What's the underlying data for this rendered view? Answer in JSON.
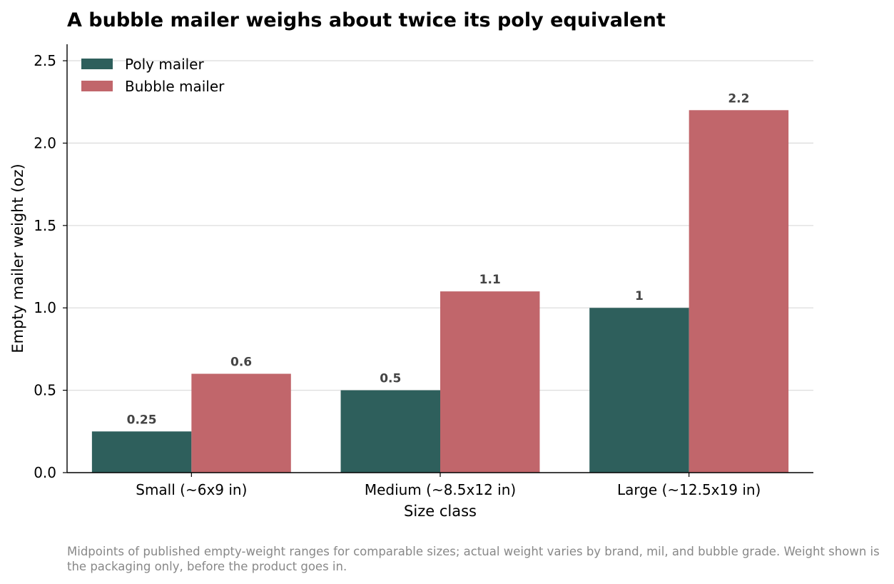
{
  "chart_data": {
    "type": "bar",
    "title": "A bubble mailer weighs about twice its poly equivalent",
    "xlabel": "Size class",
    "ylabel": "Empty mailer weight (oz)",
    "categories": [
      "Small (~6x9 in)",
      "Medium (~8.5x12 in)",
      "Large (~12.5x19 in)"
    ],
    "series": [
      {
        "name": "Poly mailer",
        "color": "#2e5f5c",
        "values": [
          0.25,
          0.5,
          1
        ],
        "labels": [
          "0.25",
          "0.5",
          "1"
        ]
      },
      {
        "name": "Bubble mailer",
        "color": "#c1666b",
        "values": [
          0.6,
          1.1,
          2.2
        ],
        "labels": [
          "0.6",
          "1.1",
          "2.2"
        ]
      }
    ],
    "ylim": [
      0,
      2.6
    ],
    "yticks": [
      0.0,
      0.5,
      1.0,
      1.5,
      2.0,
      2.5
    ],
    "ytick_labels": [
      "0.0",
      "0.5",
      "1.0",
      "1.5",
      "2.0",
      "2.5"
    ],
    "grid": "horizontal",
    "legend_position": "top-left"
  },
  "footnote": "Midpoints of published empty-weight ranges for comparable sizes; actual weight varies by brand, mil, and bubble grade. Weight shown is the packaging only, before the product goes in."
}
